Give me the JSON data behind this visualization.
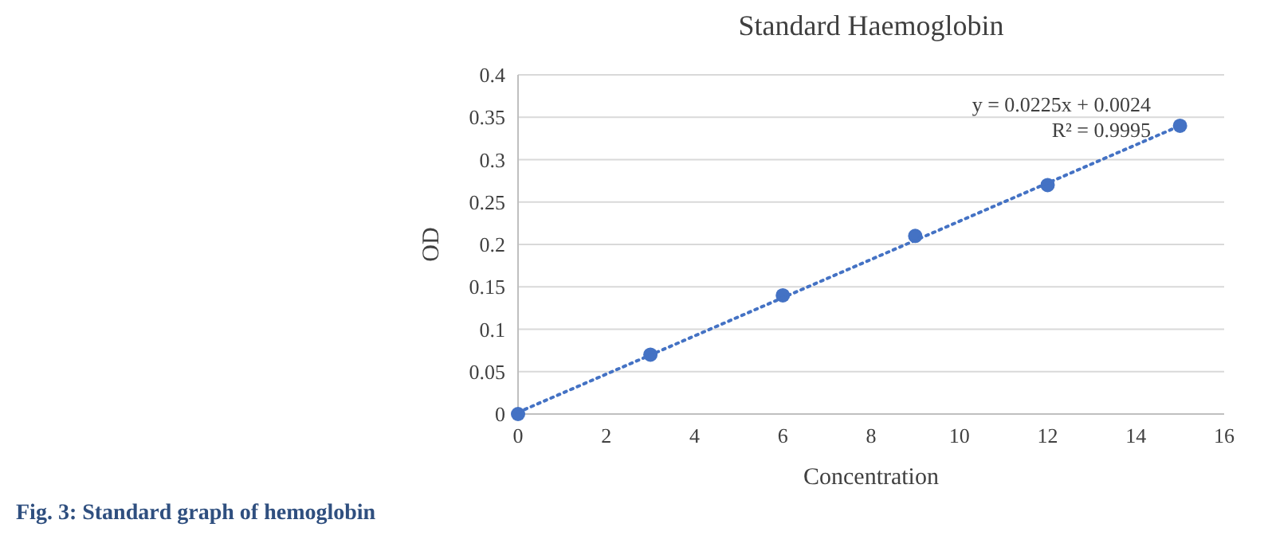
{
  "chart_data": {
    "type": "scatter",
    "title": "Standard Haemoglobin",
    "xlabel": "Concentration",
    "ylabel": "OD",
    "xlim": [
      0,
      16
    ],
    "xticks": [
      0,
      2,
      4,
      6,
      8,
      10,
      12,
      14,
      16
    ],
    "ylim": [
      0,
      0.4
    ],
    "yticks": [
      0,
      0.05,
      0.1,
      0.15,
      0.2,
      0.25,
      0.3,
      0.35,
      0.4
    ],
    "grid": "y",
    "marker": "circle",
    "series": [
      {
        "color": "#4472c4",
        "x": [
          0,
          3,
          6,
          9,
          12,
          15
        ],
        "values": [
          0,
          0.07,
          0.14,
          0.21,
          0.27,
          0.34
        ]
      },
      {
        "type": "line",
        "color": "#4472c4",
        "line_style": "dotted",
        "marker": "none",
        "x": [
          0,
          15
        ],
        "values": [
          0.002,
          0.34
        ]
      }
    ],
    "annotations": [
      "y = 0.0225x + 0.0024",
      "R² = 0.9995",
      "Fig. 3: Standard graph of hemoglobin"
    ]
  }
}
